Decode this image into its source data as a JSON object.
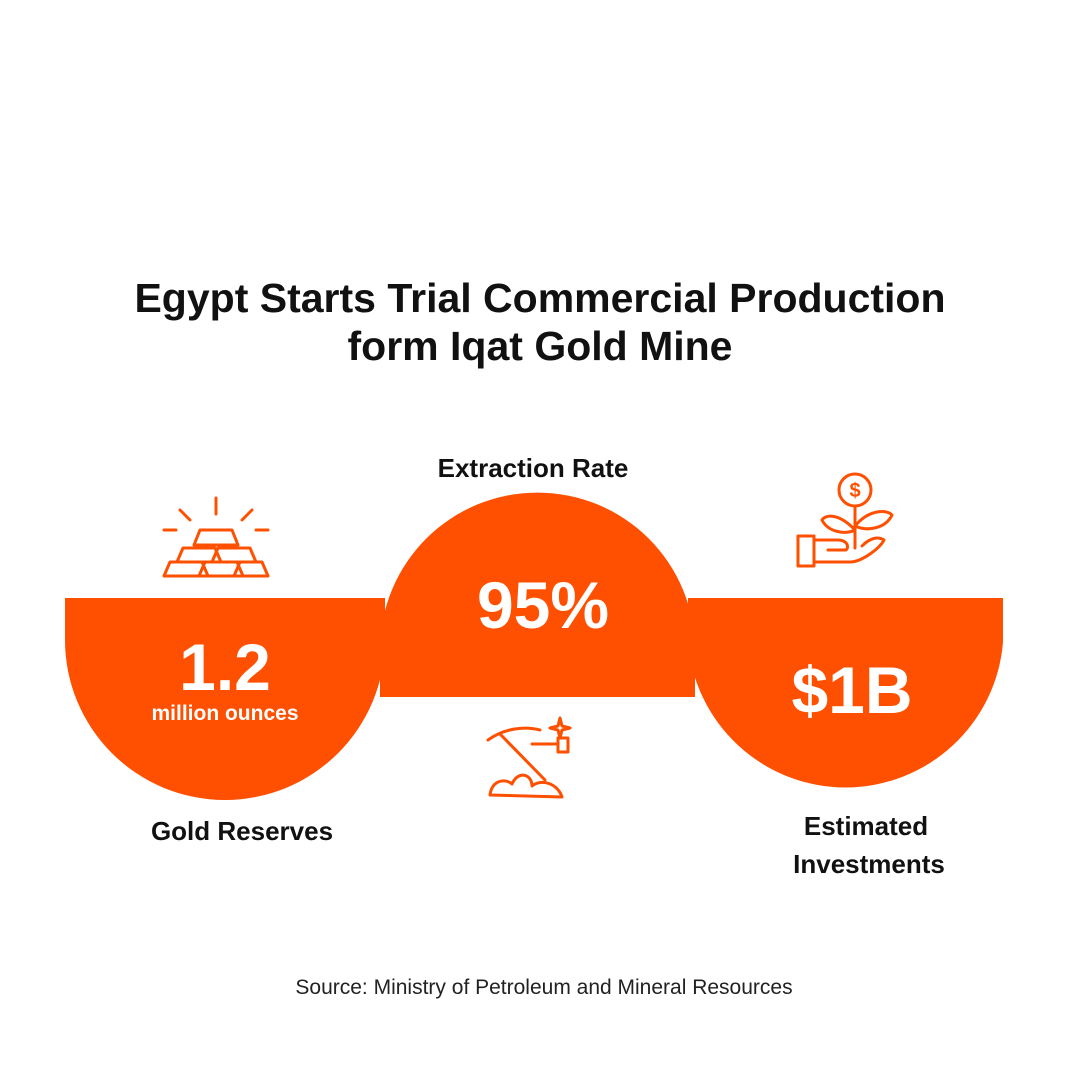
{
  "title": [
    "Egypt Starts Trial Commercial Production",
    "form Iqat Gold Mine"
  ],
  "stats": [
    {
      "value": "1.2",
      "unit": "million ounces",
      "label": [
        "Gold Reserves"
      ]
    },
    {
      "value": "95%",
      "label": [
        "Extraction Rate"
      ]
    },
    {
      "value": "$1B",
      "label": [
        "Estimated",
        "Investments"
      ]
    }
  ],
  "source": "Source: Ministry of Petroleum and Mineral Resources"
}
